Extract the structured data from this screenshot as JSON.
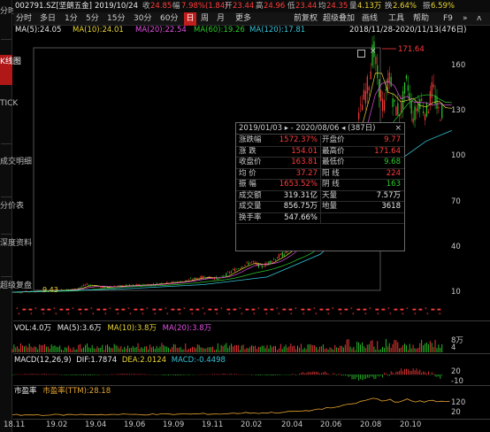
{
  "left_tabs": [
    "分时图",
    "K线图",
    "TICK",
    "成交明细",
    "分价表",
    "深度资料",
    "超级复盘"
  ],
  "quote": {
    "code": "002791.SZ[坚朗五金]",
    "date": "2019/10/24",
    "close_label": "收",
    "close": "24.85",
    "change_label": "幅",
    "change": "7.98%(1.84)",
    "open_label": "开",
    "open": "23.44",
    "high_label": "高",
    "high": "24.96",
    "low_label": "低",
    "low": "23.44",
    "prev_label": "均",
    "prev": "24.35",
    "volume_label": "量",
    "volume": "4.13万",
    "turnover_label": "换",
    "turnover": "2.64%",
    "amplitude_label": "振",
    "amplitude": "6.59%"
  },
  "toolbar": {
    "periods": [
      "分时",
      "多日",
      "1分",
      "5分",
      "15分",
      "30分",
      "60分",
      "日",
      "周",
      "月",
      "更多"
    ],
    "selected_period": "日",
    "tools": [
      "前复权",
      "超级叠加",
      "画线",
      "工具",
      "帮助"
    ],
    "f9": "F9",
    "extras": [
      "»",
      "ʌ"
    ]
  },
  "ma_row": {
    "ma5": "MA(5):24.05",
    "ma10": "MA(10):24.01",
    "ma20": "MA(20):22.54",
    "ma60": "MA(60):19.26",
    "ma120": "MA(120):17.81",
    "range": "2018/11/28-2020/11/13(476日)"
  },
  "colors": {
    "ma5": "#e8e8e8",
    "ma10": "#e8d432",
    "ma20": "#e04fe0",
    "ma60": "#2dc92d",
    "ma120": "#35c4d6",
    "up": "#ff3b3b",
    "down": "#2dc92d",
    "accent": "#c01d1d"
  },
  "chart_data": {
    "type": "candlestick",
    "y_ticks": [
      10,
      40,
      70,
      100,
      130,
      160
    ],
    "x_labels": [
      "18.11",
      "19.02",
      "19.04",
      "19.06",
      "19.09",
      "19.11",
      "20.02",
      "20.04",
      "20.06",
      "20.08",
      "20.10"
    ],
    "peak_label": "171.64",
    "low_label": "9.43",
    "price_path": [
      [
        0,
        10
      ],
      [
        20,
        10.5
      ],
      [
        40,
        11
      ],
      [
        60,
        12
      ],
      [
        70,
        15
      ],
      [
        85,
        13
      ],
      [
        100,
        14
      ],
      [
        130,
        15
      ],
      [
        160,
        17
      ],
      [
        180,
        20
      ],
      [
        195,
        19
      ],
      [
        210,
        25
      ],
      [
        225,
        30
      ],
      [
        235,
        27
      ],
      [
        250,
        33
      ],
      [
        260,
        37
      ],
      [
        268,
        45
      ],
      [
        275,
        42
      ],
      [
        283,
        55
      ],
      [
        291,
        65
      ],
      [
        299,
        75
      ],
      [
        305,
        80
      ],
      [
        312,
        95
      ],
      [
        318,
        105
      ],
      [
        324,
        118
      ],
      [
        330,
        135
      ],
      [
        336,
        150
      ],
      [
        340,
        171.64
      ],
      [
        345,
        148
      ],
      [
        350,
        130
      ],
      [
        355,
        155
      ],
      [
        360,
        132
      ],
      [
        366,
        130
      ],
      [
        372,
        150
      ],
      [
        378,
        125
      ],
      [
        384,
        138
      ],
      [
        390,
        128
      ],
      [
        396,
        145
      ],
      [
        402,
        128
      ],
      [
        408,
        132
      ],
      [
        414,
        133
      ]
    ],
    "ma_long_path": [
      [
        0,
        10
      ],
      [
        100,
        12
      ],
      [
        180,
        15
      ],
      [
        240,
        20
      ],
      [
        290,
        35
      ],
      [
        330,
        60
      ],
      [
        360,
        95
      ],
      [
        390,
        110
      ],
      [
        414,
        117
      ]
    ]
  },
  "popup": {
    "title": "2019/01/03 ▸ - 2020/08/06 ◂ (387日)",
    "close": "×",
    "rows": [
      [
        "涨跌幅",
        "1572.37%",
        "开盘价",
        "9.77"
      ],
      [
        "涨  跌",
        "154.01",
        "最高价",
        "171.64"
      ],
      [
        "收盘价",
        "163.81",
        "最低价",
        "9.68"
      ],
      [
        "均  价",
        "37.27",
        "阳  线",
        "224"
      ],
      [
        "振  幅",
        "1653.52%",
        "阴  线",
        "163"
      ],
      [
        "成交额",
        "319.31亿",
        "天量",
        "7.57万"
      ],
      [
        "成交量",
        "856.75万",
        "地量",
        "3618"
      ],
      [
        "换手率",
        "547.66%",
        "",
        ""
      ]
    ]
  },
  "vol_panel": {
    "vol": "VOL:4.0万",
    "ma5": "MA(5):3.6万",
    "ma10": "MA(10):3.8万",
    "ma20": "MA(20):3.8万",
    "axis_top": "8万",
    "axis_bottom": "4"
  },
  "macd_panel": {
    "label": "MACD(12,26,9)",
    "dif": "DIF:1.7874",
    "dea": "DEA:2.0124",
    "macd": "MACD:-0.4498",
    "axis_top": "20",
    "axis_mid": "-10"
  },
  "pe_panel": {
    "label": "市盈率",
    "value": "市盈率(TTM):28.18",
    "axis_top": "120",
    "axis_bottom": "20"
  }
}
